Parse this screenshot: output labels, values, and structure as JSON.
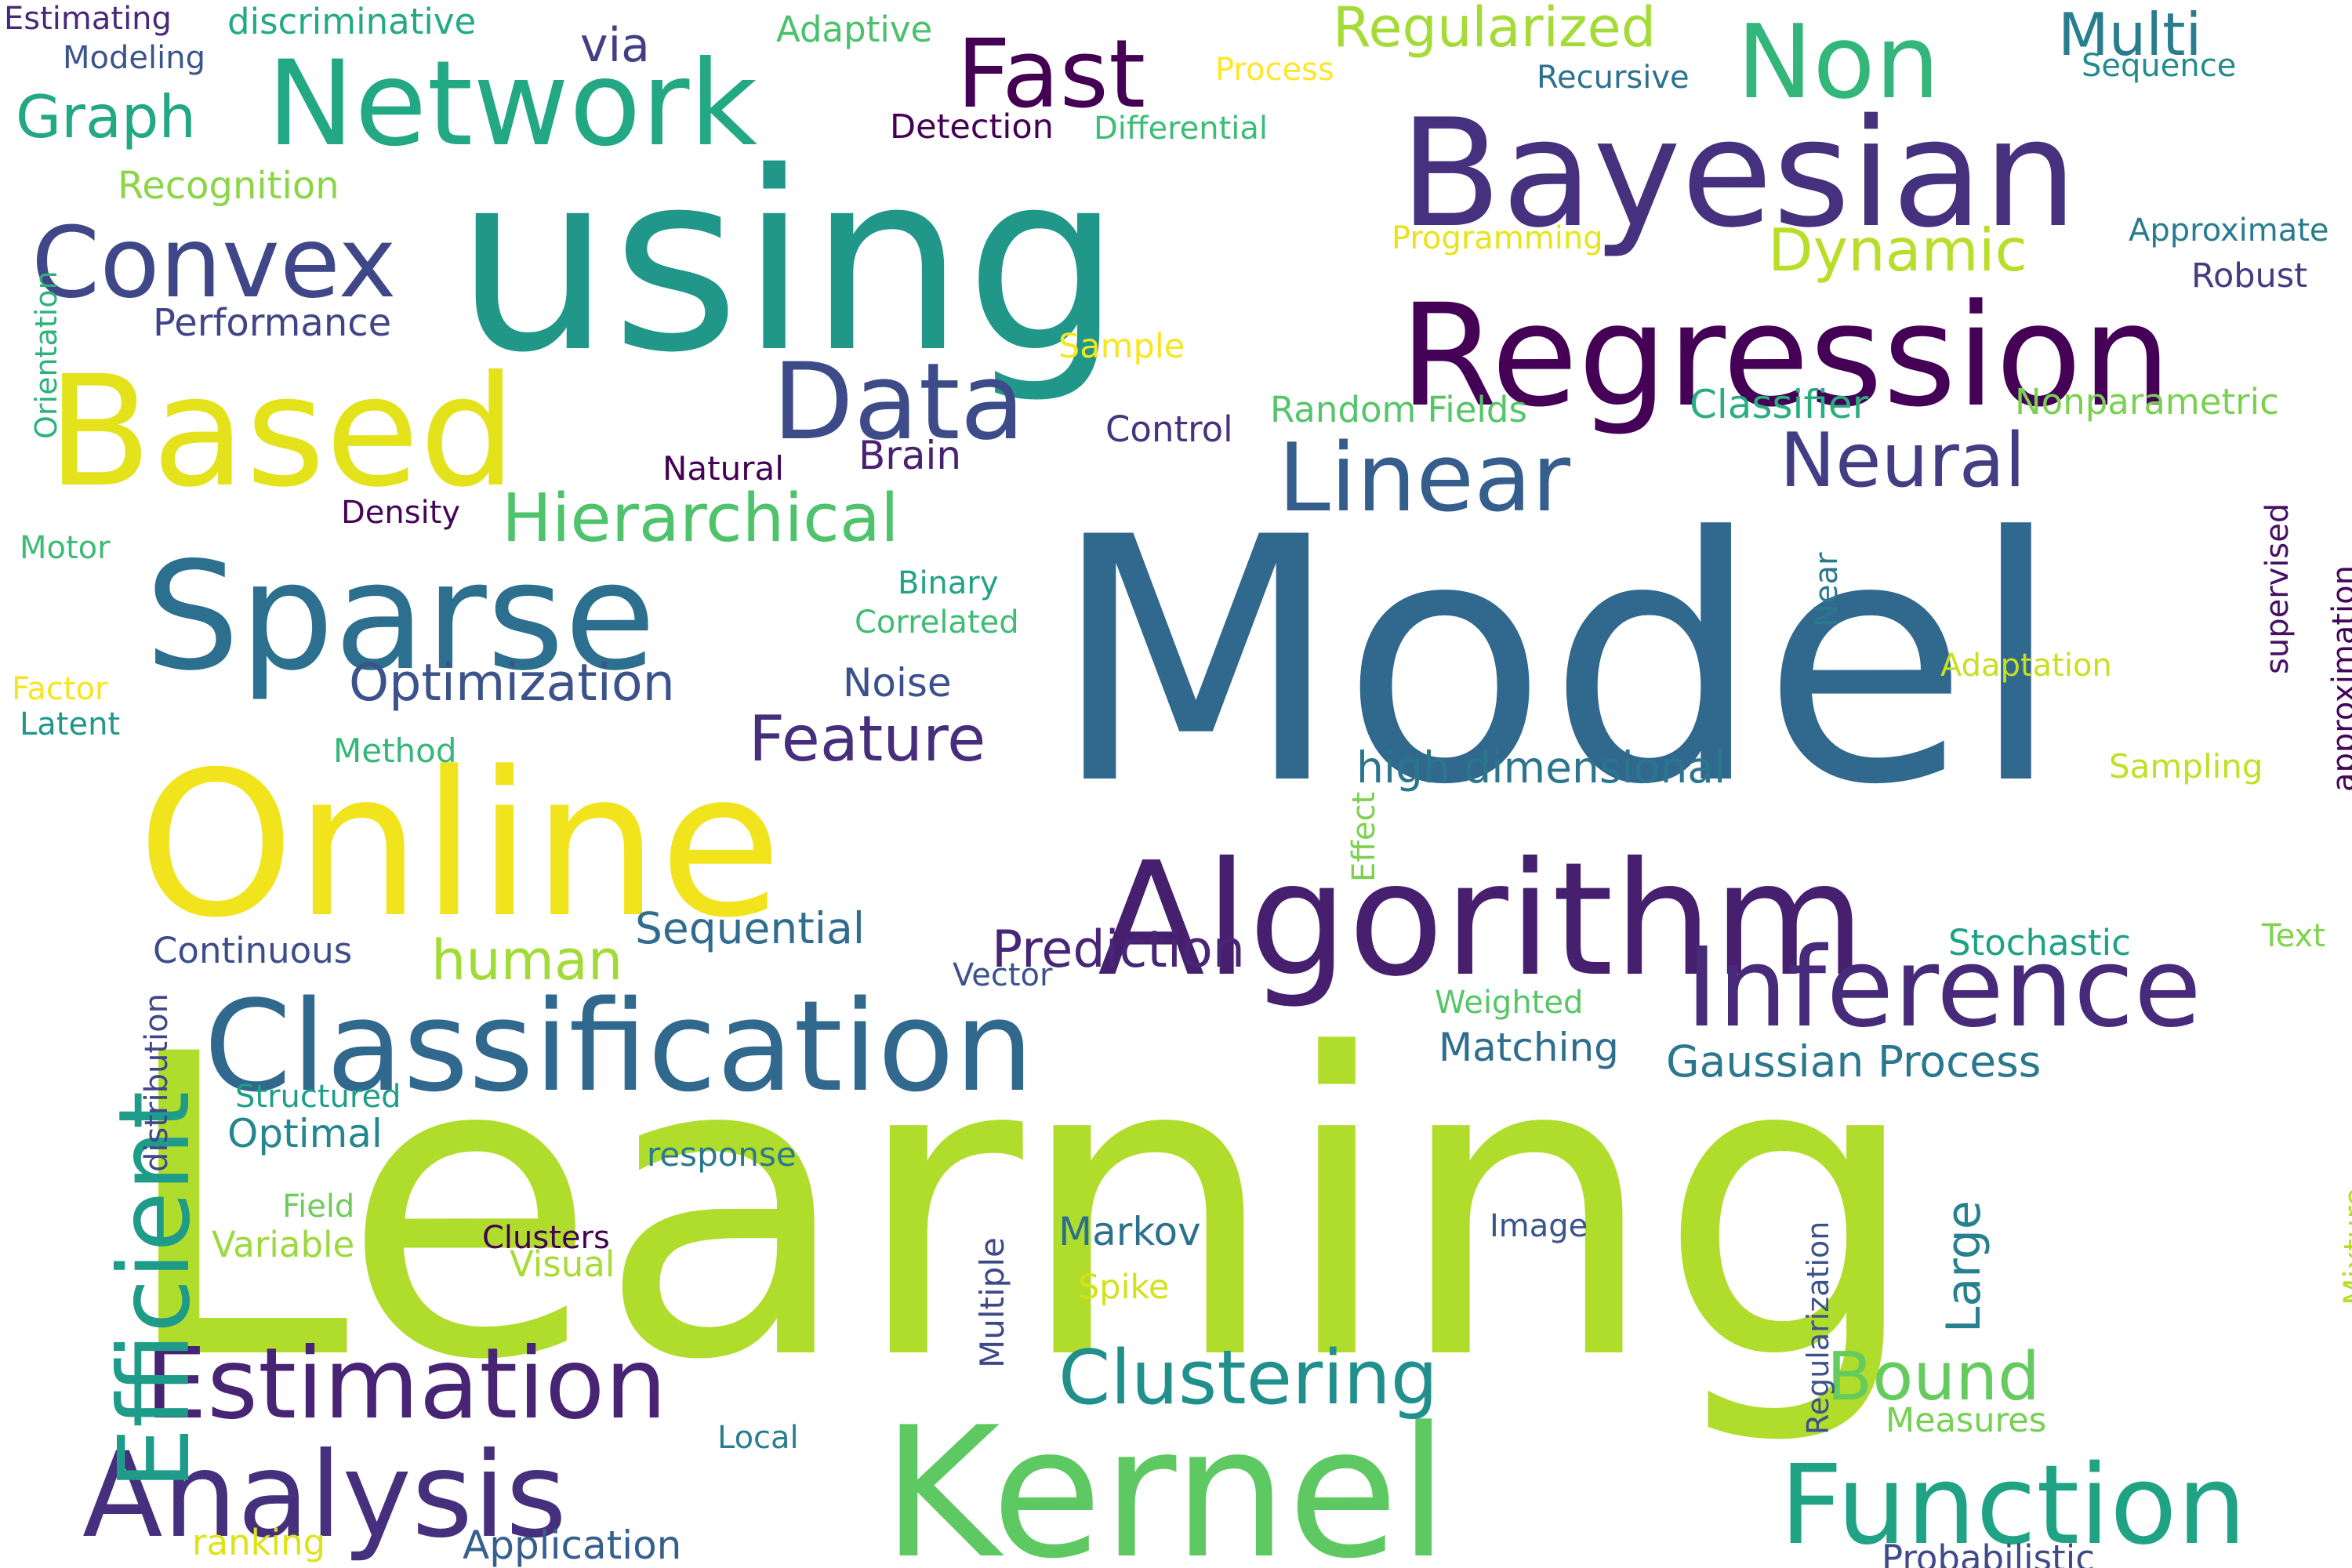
{
  "words": [
    {
      "text": "Learning",
      "color": "#b0dc2c"
    },
    {
      "text": "Model",
      "color": "#31688e"
    },
    {
      "text": "using",
      "color": "#21978a"
    },
    {
      "text": "Online",
      "color": "#f1e41d"
    },
    {
      "text": "Algorithm",
      "color": "#46206f"
    },
    {
      "text": "Bayesian",
      "color": "#46317e"
    },
    {
      "text": "Kernel",
      "color": "#5ec962"
    },
    {
      "text": "Regression",
      "color": "#440156"
    },
    {
      "text": "Classification",
      "color": "#31688e"
    },
    {
      "text": "Sparse",
      "color": "#2c6f8f"
    },
    {
      "text": "Based",
      "color": "#e3e21b"
    },
    {
      "text": "Network",
      "color": "#23a884"
    },
    {
      "text": "Inference",
      "color": "#472b7a"
    },
    {
      "text": "Analysis",
      "color": "#462f7c"
    },
    {
      "text": "Estimation",
      "color": "#482475"
    },
    {
      "text": "Function",
      "color": "#20a384"
    },
    {
      "text": "Efficient",
      "color": "#1f9c89"
    },
    {
      "text": "Data",
      "color": "#3e4b89"
    },
    {
      "text": "Convex",
      "color": "#3f4788"
    },
    {
      "text": "Fast",
      "color": "#440154"
    },
    {
      "text": "Non",
      "color": "#32b67a"
    },
    {
      "text": "Linear",
      "color": "#355e8d"
    },
    {
      "text": "Neural",
      "color": "#433d84"
    },
    {
      "text": "Clustering",
      "color": "#21908d"
    },
    {
      "text": "Hierarchical",
      "color": "#4ec36b"
    },
    {
      "text": "Feature",
      "color": "#472e7c"
    },
    {
      "text": "Bound",
      "color": "#65cb5e"
    },
    {
      "text": "Multi",
      "color": "#287d8e"
    },
    {
      "text": "Regularized",
      "color": "#a5db36"
    },
    {
      "text": "Graph",
      "color": "#22a884"
    },
    {
      "text": "Optimization",
      "color": "#3b528b"
    },
    {
      "text": "Prediction",
      "color": "#482576"
    },
    {
      "text": "Dynamic",
      "color": "#b8de29"
    },
    {
      "text": "human",
      "color": "#a2da37"
    },
    {
      "text": "Gaussian Process",
      "color": "#2a778e"
    },
    {
      "text": "Sequential",
      "color": "#2f6c8e"
    },
    {
      "text": "high dimensional",
      "color": "#2b758e"
    },
    {
      "text": "Classifier",
      "color": "#29af7f"
    },
    {
      "text": "Markov",
      "color": "#2d708e"
    },
    {
      "text": "Matching",
      "color": "#2e6d8e"
    },
    {
      "text": "Performance",
      "color": "#414487"
    },
    {
      "text": "Recognition",
      "color": "#8bd646"
    },
    {
      "text": "Noise",
      "color": "#3b518b"
    },
    {
      "text": "Brain",
      "color": "#482173"
    },
    {
      "text": "Control",
      "color": "#46337e"
    },
    {
      "text": "Random Fields",
      "color": "#54c568"
    },
    {
      "text": "Nonparametric",
      "color": "#7ad151"
    },
    {
      "text": "Large",
      "color": "#26818e"
    },
    {
      "text": "Stochastic",
      "color": "#1fa187"
    },
    {
      "text": "Optimal",
      "color": "#24868e"
    },
    {
      "text": "Continuous",
      "color": "#3d4d8a"
    },
    {
      "text": "via",
      "color": "#423f85"
    },
    {
      "text": "Application",
      "color": "#355f8d"
    },
    {
      "text": "Estimating",
      "color": "#482979"
    },
    {
      "text": "discriminative",
      "color": "#24aa83"
    },
    {
      "text": "Modeling",
      "color": "#3a548c"
    },
    {
      "text": "Adaptive",
      "color": "#4ac16d"
    },
    {
      "text": "Process",
      "color": "#fde725"
    },
    {
      "text": "Recursive",
      "color": "#2d718e"
    },
    {
      "text": "Sequence",
      "color": "#238a8d"
    },
    {
      "text": "Detection",
      "color": "#440154"
    },
    {
      "text": "Differential",
      "color": "#3dbc74"
    },
    {
      "text": "Programming",
      "color": "#e7e419"
    },
    {
      "text": "Approximate",
      "color": "#287c8e"
    },
    {
      "text": "Robust",
      "color": "#443b84"
    },
    {
      "text": "Sample",
      "color": "#f6e620"
    },
    {
      "text": "Natural",
      "color": "#440154"
    },
    {
      "text": "Density",
      "color": "#450559"
    },
    {
      "text": "Motor",
      "color": "#3bbb75"
    },
    {
      "text": "Binary",
      "color": "#20a386"
    },
    {
      "text": "Correlated",
      "color": "#3fbc73"
    },
    {
      "text": "Adaptation",
      "color": "#c8e020"
    },
    {
      "text": "Factor",
      "color": "#f4e61e"
    },
    {
      "text": "Latent",
      "color": "#1f988b"
    },
    {
      "text": "Method",
      "color": "#35b779"
    },
    {
      "text": "Sampling",
      "color": "#c2df23"
    },
    {
      "text": "Text",
      "color": "#7fd34e"
    },
    {
      "text": "Vector",
      "color": "#3b528b"
    },
    {
      "text": "Weighted",
      "color": "#56c667"
    },
    {
      "text": "Structured",
      "color": "#1f9e89"
    },
    {
      "text": "response",
      "color": "#2a788e"
    },
    {
      "text": "Field",
      "color": "#6ccd5a"
    },
    {
      "text": "Variable",
      "color": "#9bd93c"
    },
    {
      "text": "Clusters",
      "color": "#440154"
    },
    {
      "text": "Visual",
      "color": "#a8db34"
    },
    {
      "text": "Spike",
      "color": "#d2e21b"
    },
    {
      "text": "Image",
      "color": "#39558c"
    },
    {
      "text": "Measures",
      "color": "#75d054"
    },
    {
      "text": "Local",
      "color": "#287d8e"
    },
    {
      "text": "ranking",
      "color": "#dde318"
    },
    {
      "text": "Probabilistic",
      "color": "#3e4a89"
    },
    {
      "text": "Orientation",
      "color": "#2db27d"
    },
    {
      "text": "distribution",
      "color": "#404688"
    },
    {
      "text": "Effect",
      "color": "#7cd250"
    },
    {
      "text": "Near",
      "color": "#2a788e"
    },
    {
      "text": "supervised",
      "color": "#471164"
    },
    {
      "text": "approximation",
      "color": "#450559"
    },
    {
      "text": "Regularization",
      "color": "#3b528b"
    },
    {
      "text": "Multiple",
      "color": "#3f4889"
    },
    {
      "text": "Mixture",
      "color": "#b5de2b"
    }
  ]
}
